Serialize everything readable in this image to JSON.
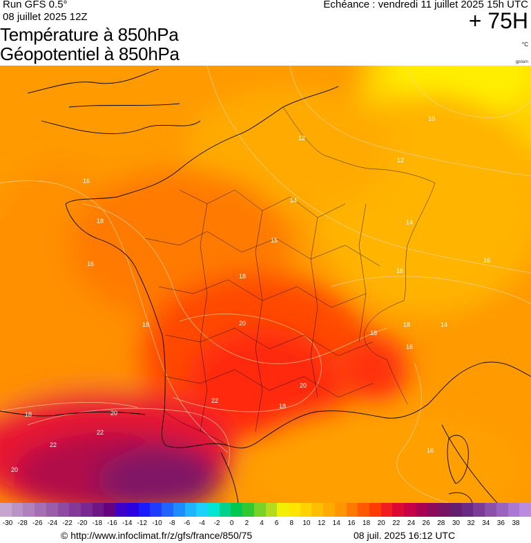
{
  "header": {
    "run_title": "Run GFS 0.5°",
    "run_date": "08 juillet 2025 12Z",
    "title_line1": "Température à 850hPa",
    "title_line2": "Géopotentiel à 850hPa",
    "forecast_label": "Echéance : vendredi 11 juillet 2025 15h UTC",
    "lead_time": "+ 75H",
    "unit": "°C",
    "credit": "gpdam"
  },
  "colorbar": {
    "colors": [
      "#c6a6cf",
      "#bb94c6",
      "#b081bc",
      "#a56fb3",
      "#9a5daa",
      "#8f4ba1",
      "#843998",
      "#7a278f",
      "#6f1586",
      "#64037d",
      "#3c00c8",
      "#2a00e0",
      "#1a1aff",
      "#1e3cff",
      "#1f64ff",
      "#1e8cff",
      "#1eb4ff",
      "#1ed2ff",
      "#00e6d2",
      "#00d28c",
      "#00c850",
      "#32c832",
      "#78d228",
      "#b4dc1e",
      "#f0f000",
      "#ffe600",
      "#ffd200",
      "#ffbe00",
      "#ffaa00",
      "#ff9600",
      "#ff7800",
      "#ff5a00",
      "#ff3c00",
      "#f01e1e",
      "#dc0a32",
      "#c80046",
      "#aa0050",
      "#8c0a5a",
      "#781464",
      "#641e6e",
      "#6a2a82",
      "#7a3c96",
      "#8a50aa",
      "#9a64be",
      "#aa78d2",
      "#ba8ce0"
    ],
    "ticks": [
      "-30",
      "-28",
      "-26",
      "-24",
      "-22",
      "-20",
      "-18",
      "-16",
      "-14",
      "-12",
      "-10",
      "-8",
      "-6",
      "-4",
      "-2",
      "0",
      "2",
      "4",
      "6",
      "8",
      "10",
      "12",
      "14",
      "16",
      "18",
      "20",
      "22",
      "24",
      "26",
      "28",
      "30",
      "32",
      "34",
      "36",
      "38"
    ]
  },
  "map": {
    "contour_labels": [
      "10",
      "12",
      "12",
      "14",
      "14",
      "14",
      "15",
      "16",
      "16",
      "16",
      "16",
      "16",
      "18",
      "18",
      "18",
      "18",
      "18",
      "18",
      "18",
      "20",
      "20",
      "20",
      "22",
      "22",
      "22",
      "20",
      "16"
    ]
  },
  "footer": {
    "url": "© http://www.infoclimat.fr/z/gfs/france/850/75",
    "timestamp": "08 juil. 2025 16:12 UTC"
  }
}
